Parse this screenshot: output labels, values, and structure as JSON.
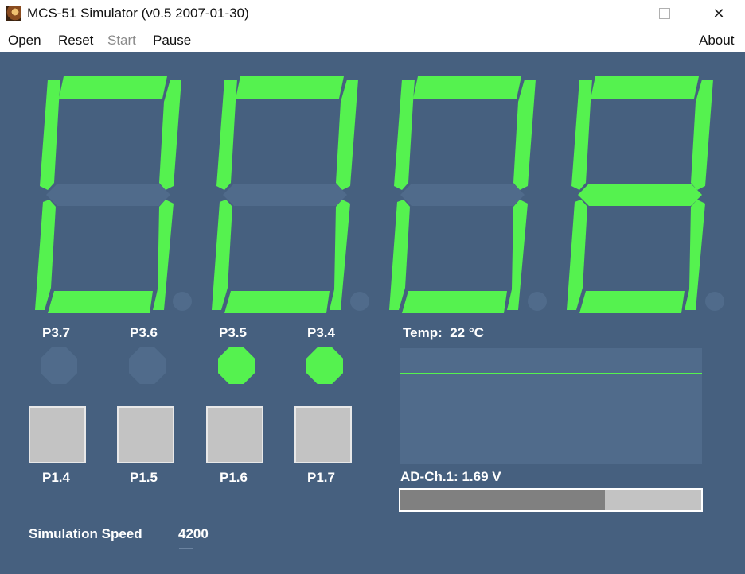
{
  "window": {
    "title": "MCS-51 Simulator (v0.5 2007-01-30)"
  },
  "menu": {
    "items": [
      {
        "label": "Open",
        "enabled": true
      },
      {
        "label": "Reset",
        "enabled": true
      },
      {
        "label": "Start",
        "enabled": false
      },
      {
        "label": "Pause",
        "enabled": true
      }
    ],
    "about": "About"
  },
  "display": {
    "text": "0008",
    "digits": [
      "0",
      "0",
      "0",
      "8"
    ],
    "color_on": "#55f24f",
    "color_off": "#506b8b"
  },
  "leds": [
    {
      "label": "P3.7",
      "on": false
    },
    {
      "label": "P3.6",
      "on": false
    },
    {
      "label": "P3.5",
      "on": true
    },
    {
      "label": "P3.4",
      "on": true
    }
  ],
  "buttons": [
    {
      "label": "P1.4"
    },
    {
      "label": "P1.5"
    },
    {
      "label": "P1.6"
    },
    {
      "label": "P1.7"
    }
  ],
  "temperature": {
    "label": "Temp:",
    "value": "22 °C",
    "value_celsius": 22
  },
  "adc": {
    "label": "AD-Ch.1:",
    "value": "1.69 V",
    "slider_fraction": 0.68
  },
  "simulation": {
    "label": "Simulation Speed",
    "value": "4200"
  }
}
